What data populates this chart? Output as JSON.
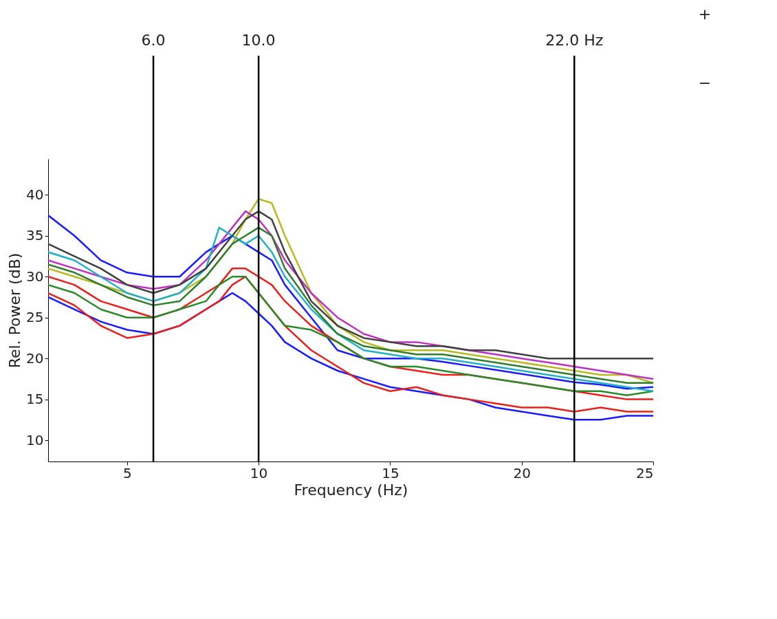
{
  "chart_data": {
    "type": "line",
    "xlabel": "Frequency (Hz)",
    "ylabel": "Rel. Power (dB)",
    "xlim": [
      2,
      25
    ],
    "ylim": [
      7.4,
      44.4
    ],
    "xticks": [
      5,
      10,
      15,
      20,
      25
    ],
    "yticks": [
      10,
      15,
      20,
      25,
      30,
      35,
      40
    ],
    "grid": false,
    "line_style": "solid",
    "x": [
      2,
      3,
      4,
      5,
      6,
      7,
      8,
      8.5,
      9,
      9.5,
      10,
      10.5,
      11,
      12,
      13,
      14,
      15,
      16,
      17,
      18,
      19,
      20,
      21,
      22,
      23,
      24,
      25
    ],
    "series": [
      {
        "color": "#1a1aff",
        "values": [
          37.5,
          35,
          32,
          30.5,
          30,
          30,
          33,
          34,
          35,
          34,
          33,
          32,
          29,
          25,
          21,
          20,
          20,
          20,
          19.6,
          19.1,
          18.6,
          18.1,
          17.6,
          17.1,
          16.8,
          16.3,
          16.5
        ]
      },
      {
        "color": "#1a1aff",
        "values": [
          27.5,
          26,
          24.5,
          23.5,
          23,
          24,
          26,
          27,
          28,
          27,
          25.5,
          24,
          22,
          20,
          18.5,
          17.5,
          16.5,
          16,
          15.5,
          15,
          14,
          13.5,
          13,
          12.5,
          12.5,
          13,
          13
        ]
      },
      {
        "color": "#e8201c",
        "values": [
          28,
          26.5,
          24,
          22.5,
          23,
          24,
          26,
          27,
          29,
          30,
          28,
          26,
          24,
          21,
          19,
          17,
          16,
          16.5,
          15.5,
          15,
          14.5,
          14,
          14,
          13.5,
          14,
          13.5,
          13.5
        ]
      },
      {
        "color": "#e8201c",
        "values": [
          30,
          29,
          27,
          26,
          25,
          26,
          28,
          29,
          31,
          31,
          30,
          29,
          27,
          24,
          22,
          20,
          19,
          18.5,
          18,
          18,
          17.5,
          17,
          16.5,
          16,
          15.5,
          15,
          15
        ]
      },
      {
        "color": "#b8b820",
        "values": [
          31,
          30,
          29,
          28,
          27,
          28,
          30,
          32,
          34,
          37,
          39.5,
          39,
          35,
          28,
          24,
          22,
          21,
          21,
          21,
          20.5,
          20,
          19.5,
          19,
          18.5,
          18,
          18,
          17
        ]
      },
      {
        "color": "#c030c0",
        "values": [
          32,
          31,
          30,
          29,
          28.5,
          29,
          32,
          34,
          36,
          38,
          37,
          35,
          32,
          28,
          25,
          23,
          22,
          22,
          21.5,
          21,
          20.5,
          20,
          19.5,
          19,
          18.5,
          18,
          17.5
        ]
      },
      {
        "color": "#2a8a2a",
        "values": [
          29,
          28,
          26,
          25,
          25,
          26,
          27,
          29,
          30,
          30,
          28,
          26,
          24,
          23.5,
          22,
          20,
          19,
          19,
          18.5,
          18,
          17.5,
          17,
          16.5,
          16,
          16,
          15.5,
          16
        ]
      },
      {
        "color": "#20b0c8",
        "values": [
          33,
          32,
          30,
          28,
          27,
          28,
          31,
          36,
          35,
          34,
          35,
          33,
          30,
          26,
          23,
          21,
          20.5,
          20,
          20,
          19.5,
          19,
          18.5,
          18,
          17.5,
          17,
          16.5,
          16
        ]
      },
      {
        "color": "#404040",
        "values": [
          34,
          32.5,
          31,
          29,
          28,
          29,
          31,
          33,
          35,
          37,
          38,
          37,
          33,
          27,
          24,
          22.5,
          22,
          21.5,
          21.5,
          21,
          21,
          20.5,
          20,
          20,
          20,
          20,
          20
        ]
      },
      {
        "color": "#2e7d2e",
        "values": [
          31.5,
          30.5,
          29,
          27.5,
          26.5,
          27,
          30,
          32,
          34,
          35,
          36,
          35,
          31,
          26.5,
          23,
          21.5,
          21,
          20.5,
          20.5,
          20,
          19.5,
          19,
          18.5,
          18,
          17.5,
          17,
          17
        ]
      }
    ],
    "ref_lines": [
      {
        "axis": "x",
        "value": 6,
        "label": "6.0",
        "color": "#000000"
      },
      {
        "axis": "x",
        "value": 10,
        "label": "10.0",
        "color": "#000000"
      },
      {
        "axis": "x",
        "value": 22,
        "label": "22.0 Hz",
        "color": "#000000"
      }
    ],
    "annotations": [
      "+",
      "−"
    ]
  }
}
